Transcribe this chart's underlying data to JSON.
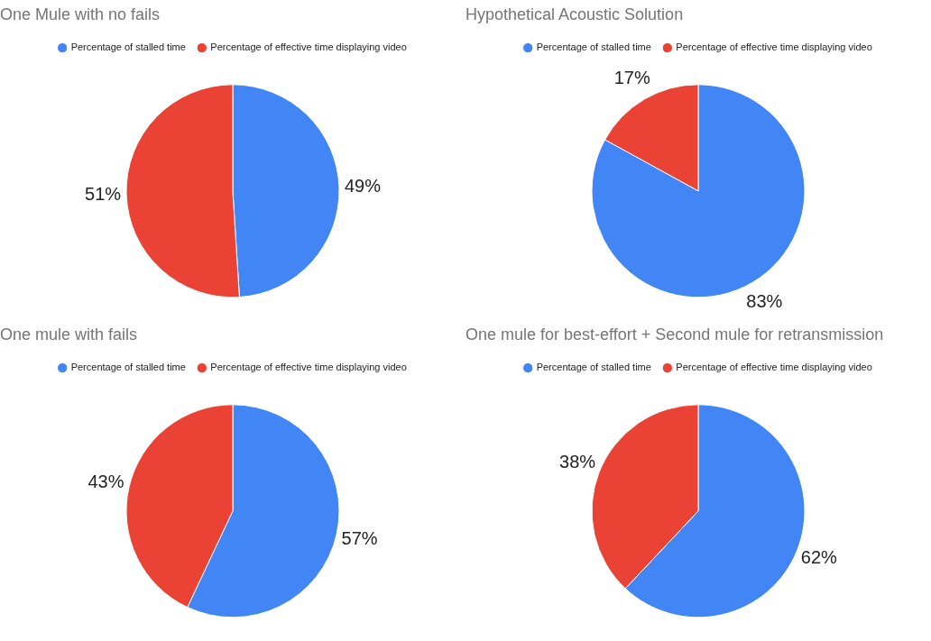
{
  "chart_data": [
    {
      "type": "pie",
      "title": "One Mule with no fails",
      "categories": [
        "Percentage of stalled time",
        "Percentage of effective time displaying video"
      ],
      "values": [
        49,
        51
      ],
      "value_labels": [
        "49%",
        "51%"
      ],
      "colors": [
        "#4285f4",
        "#ea4335"
      ],
      "legend": "top"
    },
    {
      "type": "pie",
      "title": "Hypothetical Acoustic Solution",
      "categories": [
        "Percentage of stalled time",
        "Percentage of effective time displaying video"
      ],
      "values": [
        83,
        17
      ],
      "value_labels": [
        "83%",
        "17%"
      ],
      "colors": [
        "#4285f4",
        "#ea4335"
      ],
      "legend": "top"
    },
    {
      "type": "pie",
      "title": "One mule with fails",
      "categories": [
        "Percentage of stalled time",
        "Percentage of effective time displaying video"
      ],
      "values": [
        57,
        43
      ],
      "value_labels": [
        "57%",
        "43%"
      ],
      "colors": [
        "#4285f4",
        "#ea4335"
      ],
      "legend": "top"
    },
    {
      "type": "pie",
      "title": "One mule for best-effort + Second mule for retransmission",
      "categories": [
        "Percentage of stalled time",
        "Percentage of effective time displaying video"
      ],
      "values": [
        62,
        38
      ],
      "value_labels": [
        "62%",
        "38%"
      ],
      "colors": [
        "#4285f4",
        "#ea4335"
      ],
      "legend": "top"
    }
  ]
}
